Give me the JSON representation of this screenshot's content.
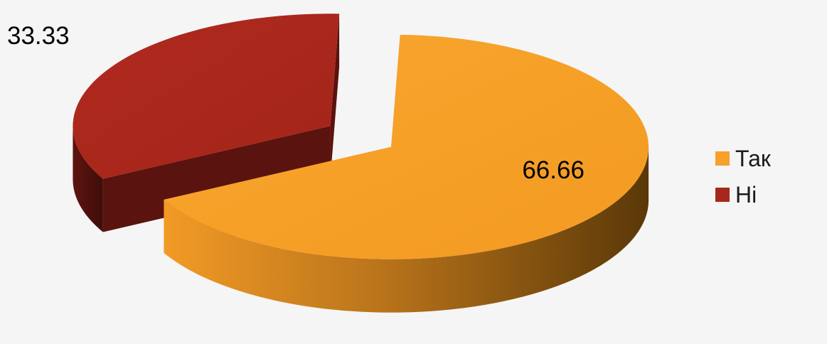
{
  "chart_data": {
    "type": "pie",
    "style": "3d-exploded",
    "title": "",
    "slices": [
      {
        "label": "Так",
        "value": 66.66,
        "value_label": "66.66",
        "color": "#f7a02a"
      },
      {
        "label": "Ні",
        "value": 33.33,
        "value_label": "33.33",
        "color": "#a8271c"
      }
    ],
    "legend": {
      "position": "right"
    }
  }
}
